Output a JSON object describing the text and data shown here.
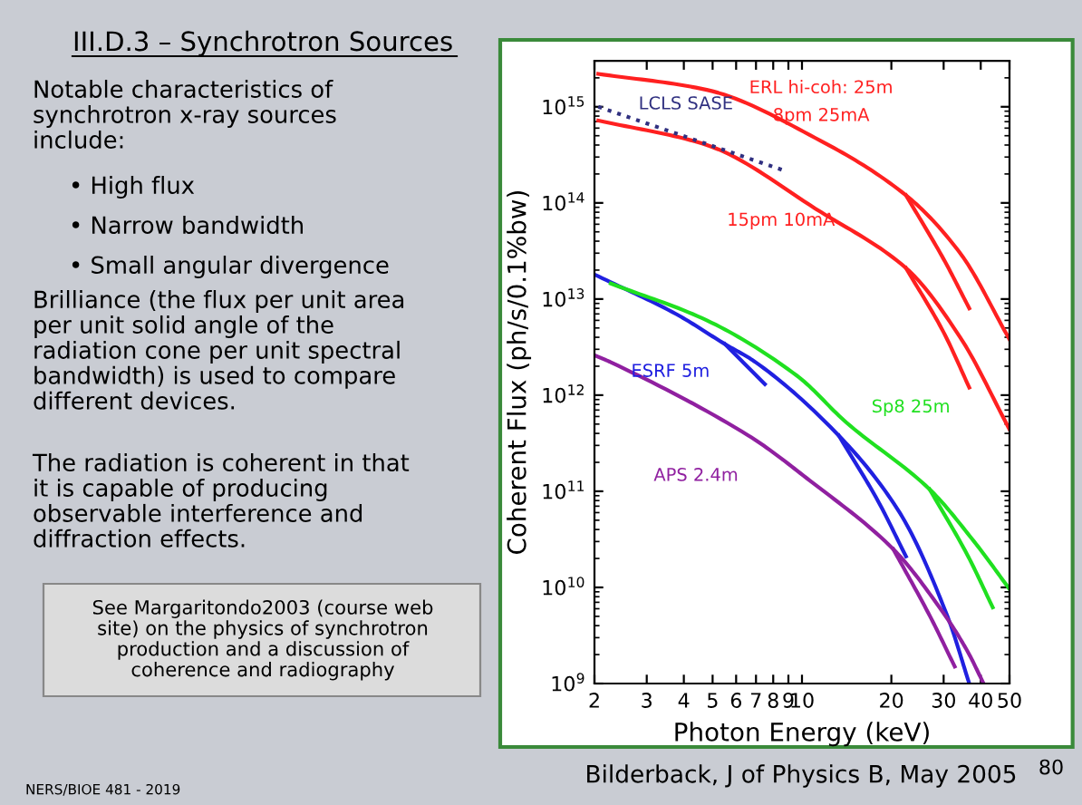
{
  "chart_data": {
    "type": "line",
    "title": "III.D.3 – Synchrotron Sources",
    "xlabel": "Photon Energy (keV)",
    "ylabel": "Coherent Flux (ph/s/0.1%bw)",
    "log": "xy",
    "xlim": [
      2,
      50
    ],
    "ylim": [
      1000000000.0,
      3000000000000000.0
    ],
    "xticks": [
      2,
      3,
      4,
      5,
      6,
      7,
      8,
      9,
      10,
      20,
      30,
      40,
      50
    ],
    "yticks": [
      {
        "value": 1000000000.0,
        "label": "10$^{9}$"
      },
      {
        "value": 10000000000.0,
        "label": "10$^{10}$"
      },
      {
        "value": 100000000000.0,
        "label": "10$^{11}$"
      },
      {
        "value": 1000000000000.0,
        "label": "10$^{12}$"
      },
      {
        "value": 10000000000000.0,
        "label": "10$^{13}$"
      },
      {
        "value": 100000000000000.0,
        "label": "10$^{14}$"
      },
      {
        "value": 1000000000000000.0,
        "label": "10$^{15}$"
      }
    ],
    "grid": false,
    "legend": false,
    "marker": "none",
    "series": [
      {
        "name": "8pm 25mA",
        "color": "#ff2020",
        "x": [
          2.06,
          4.78,
          11.6,
          22.4,
          34.1,
          50
        ],
        "values": [
          2200000000000000.0,
          1500000000000000.0,
          440000000000000.0,
          120000000000000.0,
          30000000000000.0,
          3800000000000.0
        ]
      },
      {
        "color": "#ff2020",
        "x": [
          22.4,
          30,
          36.6
        ],
        "values": [
          120000000000000.0,
          26000000000000.0,
          8000000000000.0
        ]
      },
      {
        "name": "15pm 10mA",
        "color": "#ff2020",
        "x": [
          2.06,
          4.78,
          11.6,
          22.4,
          34.1,
          50
        ],
        "values": [
          720000000000000.0,
          400000000000000.0,
          80000000000000.0,
          21000000000000.0,
          4000000000000.0,
          440000000000.0
        ]
      },
      {
        "color": "#ff2020",
        "x": [
          22.4,
          30,
          36.6
        ],
        "values": [
          21000000000000.0,
          4500000000000.0,
          1200000000000.0
        ]
      },
      {
        "name": "LCLS SASE",
        "color": "#303080",
        "line_style": "dotted",
        "x": [
          2.06,
          8.6
        ],
        "values": [
          1000000000000000.0,
          220000000000000.0
        ]
      },
      {
        "name": "ESRF 5m",
        "color": "#2020e0",
        "x": [
          2,
          3.76,
          5.5,
          6.98,
          13.3,
          21.4,
          30.9,
          36.6
        ],
        "values": [
          18000000000000.0,
          7000000000000.0,
          3400000000000.0,
          2200000000000.0,
          380000000000.0,
          59000000000.0,
          5000000000.0,
          1000000000.0
        ]
      },
      {
        "color": "#2020e0",
        "x": [
          5.5,
          7.5
        ],
        "values": [
          3400000000000.0,
          1300000000000.0
        ]
      },
      {
        "color": "#2020e0",
        "x": [
          13.3,
          18,
          22.4
        ],
        "values": [
          380000000000.0,
          80000000000.0,
          21000000000.0
        ]
      },
      {
        "name": "Sp8 25m",
        "color": "#20e020",
        "x": [
          2.27,
          4.78,
          9.6,
          14.1,
          26.9,
          38,
          50
        ],
        "values": [
          14500000000000.0,
          6000000000000.0,
          1600000000000.0,
          520000000000.0,
          105000000000.0,
          30000000000.0,
          9600000000.0
        ]
      },
      {
        "color": "#20e020",
        "x": [
          26.9,
          36,
          43.9
        ],
        "values": [
          105000000000.0,
          22000000000.0,
          6200000000.0
        ]
      },
      {
        "name": "APS 2.4m",
        "color": "#9020a0",
        "x": [
          2,
          2.27,
          6.6,
          10.6,
          20.3,
          29.6,
          36,
          40.9
        ],
        "values": [
          2600000000000.0,
          2200000000000.0,
          380000000000.0,
          130000000000.0,
          25000000000.0,
          5700000000.0,
          2200000000.0,
          1000000000.0
        ]
      },
      {
        "color": "#9020a0",
        "x": [
          20.3,
          27,
          32.7
        ],
        "values": [
          25000000000.0,
          5000000000.0,
          1500000000.0
        ]
      }
    ],
    "annotations": [
      "ERL hi-coh: 25m",
      "Notable characteristics of\nsynchrotron x-ray sources\ninclude:",
      "• High flux",
      "• Narrow bandwidth",
      "• Small angular divergence",
      "Brilliance (the flux per unit area\nper unit solid angle of the\nradiation cone per unit spectral\nbandwidth) is used to compare\ndifferent devices.",
      "The radiation is coherent in that\nit is capable of producing\nobservable interference and\ndiffraction effects.",
      "See Margaritondo2003 (course web\nsite) on the physics of synchrotron\nproduction and a discussion of\ncoherence and radiography",
      "Bilderback, J of Physics B, May 2005",
      "NERS/BIOE 481 - 2019",
      "80"
    ]
  }
}
